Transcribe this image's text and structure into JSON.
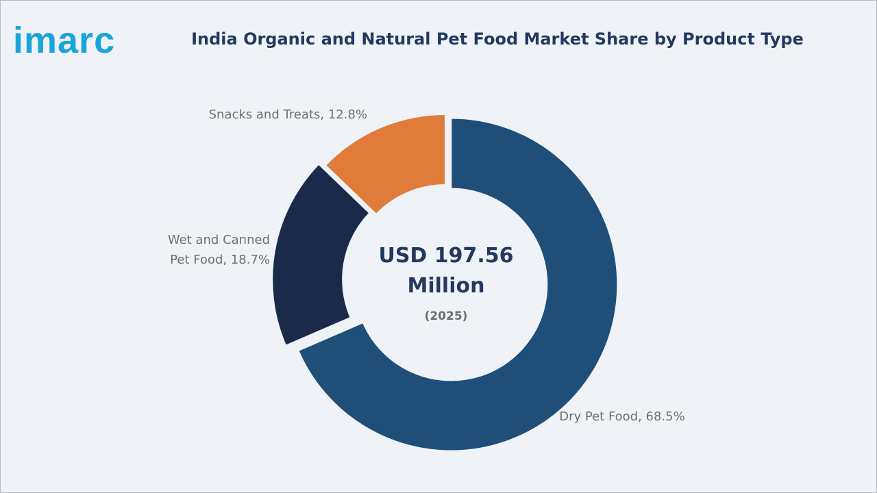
{
  "brand": {
    "logo_text": "imarc",
    "color": "#1aa5d9"
  },
  "chart_data": {
    "type": "pie",
    "title": "India Organic and Natural Pet Food Market Share by Product Type",
    "center_text": {
      "line1": "USD 197.56",
      "line2": "Million",
      "line3": "(2025)"
    },
    "slices": [
      {
        "name": "Dry Pet Food",
        "value": 68.5,
        "label_lines": [
          "Dry Pet Food, 68.5%"
        ],
        "color": "#1f4e79",
        "exploded": true
      },
      {
        "name": "Wet and Canned Pet Food",
        "value": 18.7,
        "label_lines": [
          "Wet and Canned",
          "Pet Food, 18.7%"
        ],
        "color": "#1b2a4a",
        "exploded": true
      },
      {
        "name": "Snacks and Treats",
        "value": 12.8,
        "label_lines": [
          "Snacks and Treats, 12.8%"
        ],
        "color": "#e07b39",
        "exploded": false
      }
    ],
    "unit": "%"
  }
}
